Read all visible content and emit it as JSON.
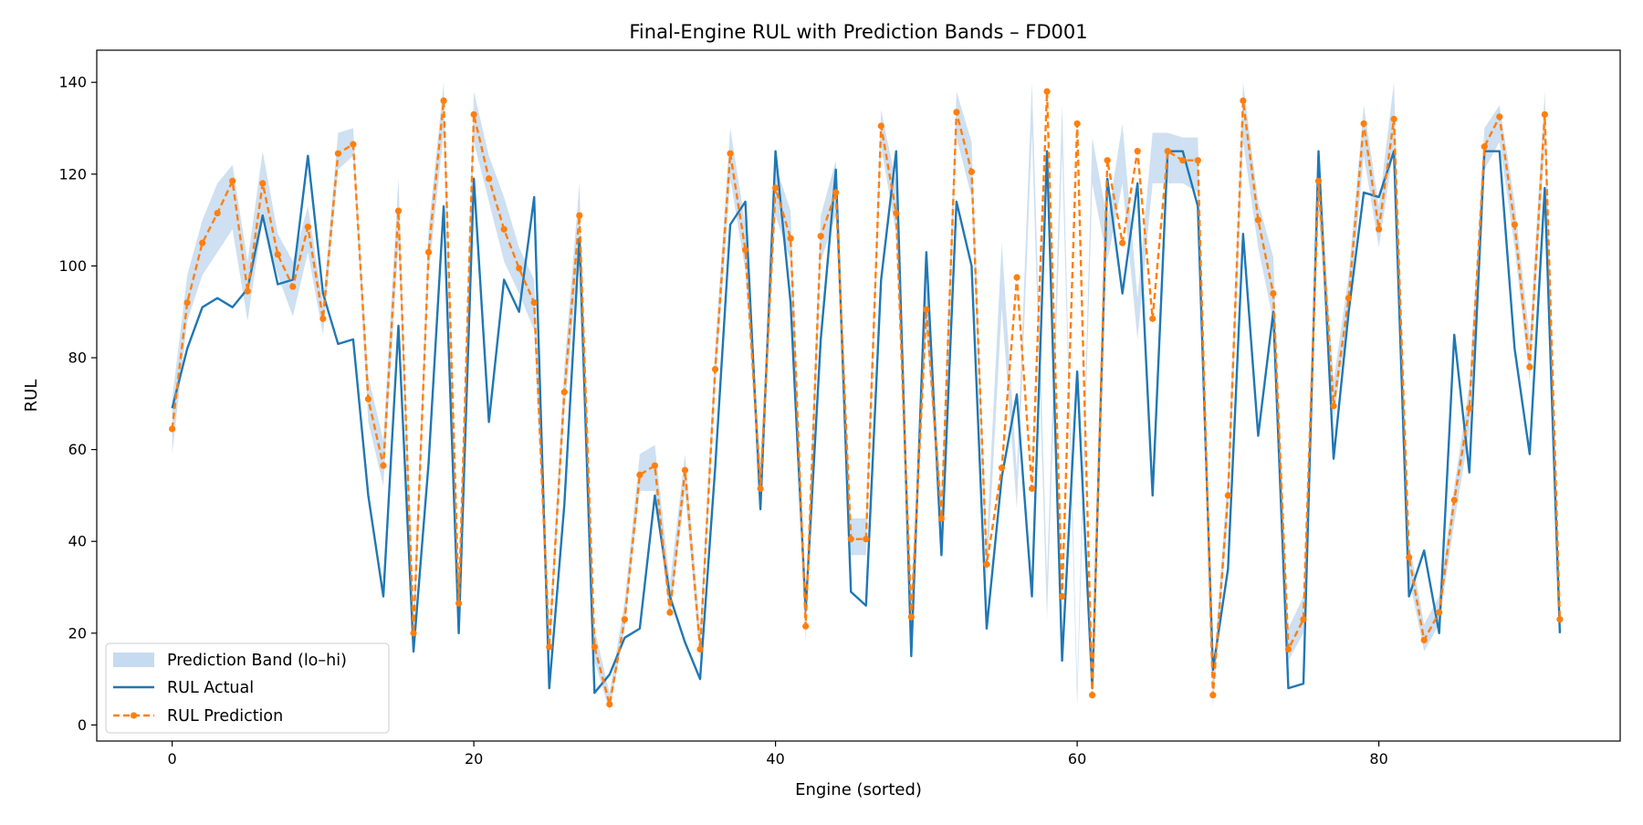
{
  "chart_data": {
    "type": "line",
    "title": "Final-Engine RUL with Prediction Bands – FD001",
    "xlabel": "Engine (sorted)",
    "ylabel": "RUL",
    "xlim": [
      -5,
      96
    ],
    "ylim": [
      -3.5,
      147
    ],
    "xticks": [
      0,
      20,
      40,
      60,
      80
    ],
    "yticks": [
      0,
      20,
      40,
      60,
      80,
      100,
      120,
      140
    ],
    "grid": false,
    "legend_position": "lower-left",
    "x": [
      0,
      1,
      2,
      3,
      4,
      5,
      6,
      7,
      8,
      9,
      10,
      11,
      12,
      13,
      14,
      15,
      16,
      17,
      18,
      19,
      20,
      21,
      22,
      23,
      24,
      25,
      26,
      27,
      28,
      29,
      30,
      31,
      32,
      33,
      34,
      35,
      36,
      37,
      38,
      39,
      40,
      41,
      42,
      43,
      44,
      45,
      46,
      47,
      48,
      49,
      50,
      51,
      52,
      53,
      54,
      55,
      56,
      57,
      58,
      59,
      60,
      61,
      62,
      63,
      64,
      65,
      66,
      67,
      68,
      69,
      70,
      71,
      72,
      73,
      74,
      75,
      76,
      77,
      78,
      79,
      80,
      81,
      82,
      83,
      84,
      85,
      86,
      87,
      88,
      89,
      90,
      91,
      92
    ],
    "series": [
      {
        "name": "Prediction Band (lo–hi)",
        "kind": "band",
        "color": "#c6dbef",
        "lo": [
          59,
          88,
          98,
          103,
          108,
          88,
          110,
          98,
          89,
          103,
          85,
          121,
          124,
          66,
          52,
          105,
          17,
          98,
          129,
          24,
          127,
          114,
          101,
          94,
          86,
          14,
          68,
          104,
          14,
          3,
          21,
          51,
          51,
          23,
          51,
          14,
          73,
          119,
          99,
          49,
          111,
          101,
          18,
          101,
          111,
          37,
          37,
          126,
          107,
          20,
          86,
          41,
          128,
          115,
          31,
          91,
          47,
          129,
          23,
          125,
          4,
          118,
          101,
          118,
          84,
          118,
          118,
          118,
          116,
          4,
          46,
          127,
          104,
          88,
          14,
          20,
          112,
          67,
          89,
          124,
          104,
          126,
          32,
          16,
          22,
          44,
          64,
          121,
          127,
          104,
          75,
          127,
          20
        ],
        "hi": [
          71,
          98,
          110,
          118,
          122,
          101,
          125,
          107,
          101,
          113,
          92,
          129,
          130,
          76,
          62,
          119,
          24,
          108,
          140,
          30,
          138,
          124,
          115,
          104,
          97,
          21,
          78,
          118,
          21,
          7,
          27,
          59,
          61,
          31,
          59,
          21,
          82,
          130,
          109,
          57,
          122,
          112,
          26,
          111,
          123,
          45,
          45,
          134,
          118,
          28,
          96,
          50,
          138,
          127,
          40,
          105,
          55,
          140,
          32,
          135,
          9,
          128,
          110,
          131,
          93,
          129,
          129,
          128,
          128,
          10,
          55,
          140,
          114,
          102,
          21,
          28,
          125,
          75,
          98,
          135,
          113,
          140,
          40,
          22,
          28,
          52,
          74,
          130,
          135,
          114,
          84,
          138,
          26
        ]
      },
      {
        "name": "RUL Actual",
        "kind": "line",
        "color": "#1f77b4",
        "values": [
          69,
          82,
          91,
          93,
          91,
          95,
          111,
          96,
          97,
          124,
          94,
          83,
          84,
          50,
          28,
          87,
          16,
          57,
          113,
          20,
          119,
          66,
          97,
          90,
          115,
          8,
          48,
          106,
          7,
          11,
          19,
          21,
          50,
          28,
          18,
          10,
          56,
          109,
          114,
          47,
          125,
          92,
          25,
          84,
          121,
          29,
          26,
          97,
          125,
          15,
          103,
          37,
          114,
          100,
          21,
          54,
          72,
          28,
          125,
          14,
          77,
          8,
          119,
          94,
          118,
          50,
          125,
          125,
          113,
          12,
          34,
          107,
          63,
          90,
          8,
          9,
          125,
          58,
          90,
          116,
          115,
          125,
          28,
          38,
          20,
          85,
          55,
          125,
          125,
          82,
          59,
          117,
          20
        ]
      },
      {
        "name": "RUL Prediction",
        "kind": "dashed-line-markers",
        "color": "#ff7f0e",
        "values": [
          64.5,
          92,
          105,
          111.5,
          118.5,
          94.5,
          118,
          102.5,
          95.5,
          108.5,
          88.5,
          124.5,
          126.5,
          71,
          56.5,
          112,
          20,
          103,
          136,
          26.5,
          133,
          119,
          108,
          99.5,
          92,
          17,
          72.5,
          111,
          17,
          4.5,
          23,
          54.5,
          56.5,
          24.5,
          55.5,
          16.5,
          77.5,
          124.5,
          103.5,
          51.5,
          117,
          106,
          21.5,
          106.5,
          116,
          40.5,
          40.5,
          130.5,
          111.5,
          23.5,
          90.5,
          45,
          133.5,
          120.5,
          35,
          56,
          97.5,
          51.5,
          138,
          28,
          131,
          6.5,
          123,
          105,
          125,
          88.5,
          125,
          123,
          123,
          6.5,
          50,
          136,
          110,
          94,
          16.5,
          23,
          118.5,
          69.5,
          93,
          131,
          108,
          132,
          36.5,
          18.5,
          24.5,
          49,
          69,
          126,
          132.5,
          109,
          78,
          133,
          23
        ]
      }
    ]
  }
}
